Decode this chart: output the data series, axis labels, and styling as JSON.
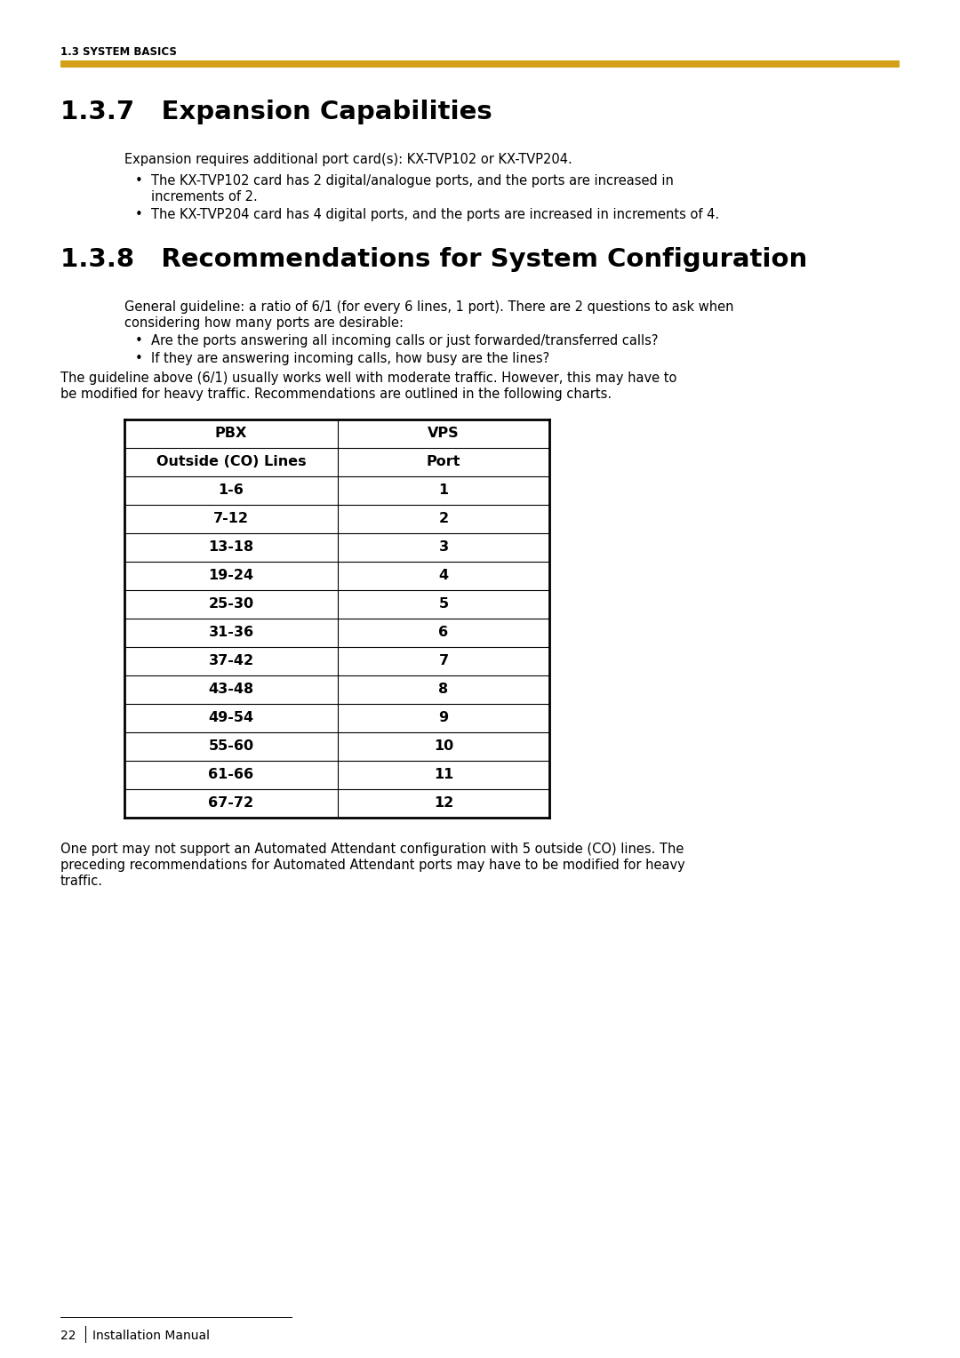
{
  "header_label": "1.3 SYSTEM BASICS",
  "header_bar_color": "#D4A017",
  "section1_title": "1.3.7   Expansion Capabilities",
  "section1_intro": "Expansion requires additional port card(s): KX-TVP102 or KX-TVP204.",
  "section1_bullet1_line1": "The KX-TVP102 card has 2 digital/analogue ports, and the ports are increased in",
  "section1_bullet1_line2": "increments of 2.",
  "section1_bullet2": "The KX-TVP204 card has 4 digital ports, and the ports are increased in increments of 4.",
  "section2_title": "1.3.8   Recommendations for System Configuration",
  "section2_para1_line1": "General guideline: a ratio of 6/1 (for every 6 lines, 1 port). There are 2 questions to ask when",
  "section2_para1_line2": "considering how many ports are desirable:",
  "section2_bullet1": "Are the ports answering all incoming calls or just forwarded/transferred calls?",
  "section2_bullet2": "If they are answering incoming calls, how busy are the lines?",
  "section2_para2_line1": "The guideline above (6/1) usually works well with moderate traffic. However, this may have to",
  "section2_para2_line2": "be modified for heavy traffic. Recommendations are outlined in the following charts.",
  "table_col1_header": "PBX",
  "table_col2_header": "VPS",
  "table_col1_subheader": "Outside (CO) Lines",
  "table_col2_subheader": "Port",
  "table_rows": [
    [
      "1-6",
      "1"
    ],
    [
      "7-12",
      "2"
    ],
    [
      "13-18",
      "3"
    ],
    [
      "19-24",
      "4"
    ],
    [
      "25-30",
      "5"
    ],
    [
      "31-36",
      "6"
    ],
    [
      "37-42",
      "7"
    ],
    [
      "43-48",
      "8"
    ],
    [
      "49-54",
      "9"
    ],
    [
      "55-60",
      "10"
    ],
    [
      "61-66",
      "11"
    ],
    [
      "67-72",
      "12"
    ]
  ],
  "footer_para_line1": "One port may not support an Automated Attendant configuration with 5 outside (CO) lines. The",
  "footer_para_line2": "preceding recommendations for Automated Attendant ports may have to be modified for heavy",
  "footer_para_line3": "traffic.",
  "page_num": "22",
  "page_label": "Installation Manual",
  "bg_color": "#ffffff",
  "text_color": "#000000",
  "header_bar_color_line": "#C8A800"
}
